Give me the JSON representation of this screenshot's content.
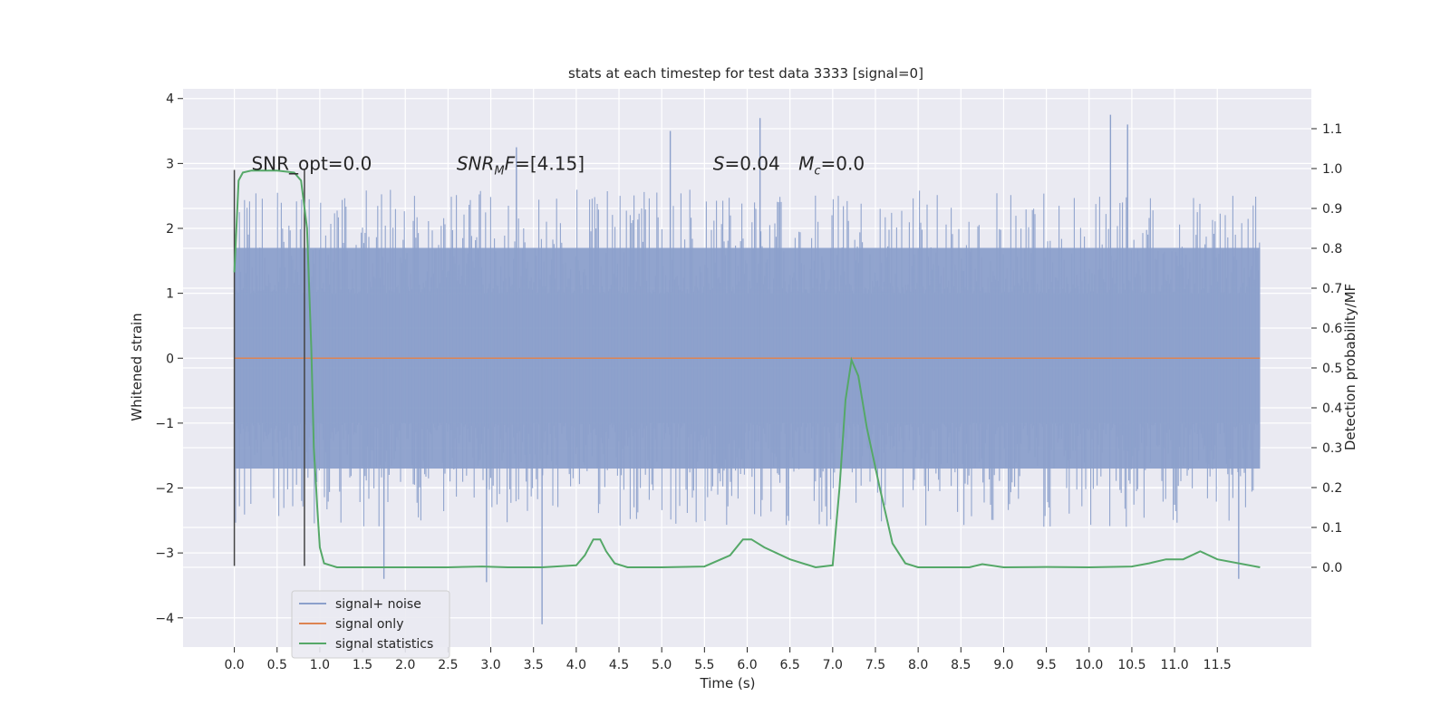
{
  "chart_data": {
    "type": "line",
    "title": "stats at each timestep for test data 3333 [signal=0]",
    "xlabel": "Time (s)",
    "ylabel": "Whitened strain",
    "ylabel_right": "Detection probability/MF",
    "xlim": [
      -0.6,
      12.6
    ],
    "ylim": [
      -4.45,
      4.15
    ],
    "ylim_right": [
      -0.2,
      1.2
    ],
    "x_ticks": [
      0.0,
      0.5,
      1.0,
      1.5,
      2.0,
      2.5,
      3.0,
      3.5,
      4.0,
      4.5,
      5.0,
      5.5,
      6.0,
      6.5,
      7.0,
      7.5,
      8.0,
      8.5,
      9.0,
      9.5,
      10.0,
      10.5,
      11.0,
      11.5
    ],
    "x_tick_labels": [
      "0.0",
      "0.5",
      "1.0",
      "1.5",
      "2.0",
      "2.5",
      "3.0",
      "3.5",
      "4.0",
      "4.5",
      "5.0",
      "5.5",
      "6.0",
      "6.5",
      "7.0",
      "7.5",
      "8.0",
      "8.5",
      "9.0",
      "9.5",
      "10.0",
      "10.5",
      "11.0",
      "11.5"
    ],
    "y_ticks": [
      -4,
      -3,
      -2,
      -1,
      0,
      1,
      2,
      3,
      4
    ],
    "y_tick_labels": [
      "−4",
      "−3",
      "−2",
      "−1",
      "0",
      "1",
      "2",
      "3",
      "4"
    ],
    "y_ticks_right": [
      0.0,
      0.1,
      0.2,
      0.3,
      0.4,
      0.5,
      0.6,
      0.7,
      0.8,
      0.9,
      1.0,
      1.1
    ],
    "y_tick_labels_right": [
      "0.0",
      "0.1",
      "0.2",
      "0.3",
      "0.4",
      "0.5",
      "0.6",
      "0.7",
      "0.8",
      "0.9",
      "1.0",
      "1.1"
    ],
    "grid": true,
    "legend_position": "bottom-left",
    "series": [
      {
        "name": "signal+ noise",
        "color": "#8ca0cb",
        "axis": "left",
        "style": "noise band",
        "x_range": [
          0.0,
          12.0
        ],
        "typical_envelope": [
          -1.7,
          1.7
        ],
        "extreme_peaks": [
          {
            "x": 1.75,
            "y": -3.4
          },
          {
            "x": 2.95,
            "y": -3.45
          },
          {
            "x": 3.6,
            "y": -4.1
          },
          {
            "x": 3.3,
            "y": 3.25
          },
          {
            "x": 5.1,
            "y": 3.5
          },
          {
            "x": 6.15,
            "y": 3.7
          },
          {
            "x": 10.25,
            "y": 3.75
          },
          {
            "x": 10.45,
            "y": 3.6
          },
          {
            "x": 11.75,
            "y": -3.4
          }
        ]
      },
      {
        "name": "signal only",
        "color": "#dd8452",
        "axis": "left",
        "x": [
          0.0,
          12.0
        ],
        "y": [
          0.0,
          0.0
        ]
      },
      {
        "name": "signal statistics",
        "color": "#55a868",
        "axis": "right",
        "x": [
          0.0,
          0.05,
          0.1,
          0.2,
          0.3,
          0.5,
          0.7,
          0.78,
          0.85,
          0.9,
          0.93,
          0.97,
          1.0,
          1.05,
          1.2,
          1.5,
          2.0,
          2.5,
          2.9,
          3.2,
          3.6,
          4.0,
          4.1,
          4.2,
          4.28,
          4.35,
          4.45,
          4.6,
          5.0,
          5.5,
          5.8,
          5.95,
          6.05,
          6.2,
          6.5,
          6.8,
          7.0,
          7.08,
          7.15,
          7.22,
          7.3,
          7.4,
          7.55,
          7.7,
          7.85,
          8.0,
          8.3,
          8.6,
          8.75,
          9.0,
          9.5,
          10.0,
          10.5,
          10.7,
          10.9,
          11.1,
          11.3,
          11.5,
          12.0
        ],
        "y": [
          0.74,
          0.97,
          0.99,
          0.995,
          0.995,
          0.995,
          0.99,
          0.97,
          0.85,
          0.55,
          0.3,
          0.15,
          0.05,
          0.01,
          0.0,
          0.0,
          0.0,
          0.0,
          0.002,
          0.0,
          0.0,
          0.005,
          0.03,
          0.07,
          0.07,
          0.04,
          0.01,
          0.0,
          0.0,
          0.002,
          0.03,
          0.07,
          0.07,
          0.05,
          0.02,
          0.0,
          0.005,
          0.2,
          0.42,
          0.52,
          0.48,
          0.35,
          0.2,
          0.06,
          0.01,
          0.0,
          0.0,
          0.0,
          0.008,
          0.0,
          0.001,
          0.0,
          0.002,
          0.01,
          0.02,
          0.02,
          0.04,
          0.02,
          0.0
        ]
      }
    ],
    "vertical_markers": [
      0.0,
      0.82
    ],
    "annotations": [
      {
        "x": 0.2,
        "y": 3.0,
        "text": "SNR_opt=0.0"
      },
      {
        "x": 2.6,
        "y": 3.0,
        "text": "SNR",
        "sub": "M",
        "tail": "F=[4.15]",
        "italic": true
      },
      {
        "x": 5.6,
        "y": 3.0,
        "text": "S",
        "tail": "=0.04",
        "italic": true
      },
      {
        "x": 6.6,
        "y": 3.0,
        "text": "M",
        "sub": "c",
        "tail": "=0.0",
        "italic": true
      }
    ],
    "colors": {
      "plot_background": "#eaeaf2",
      "grid": "#ffffff",
      "marker_line": "#444444"
    }
  }
}
